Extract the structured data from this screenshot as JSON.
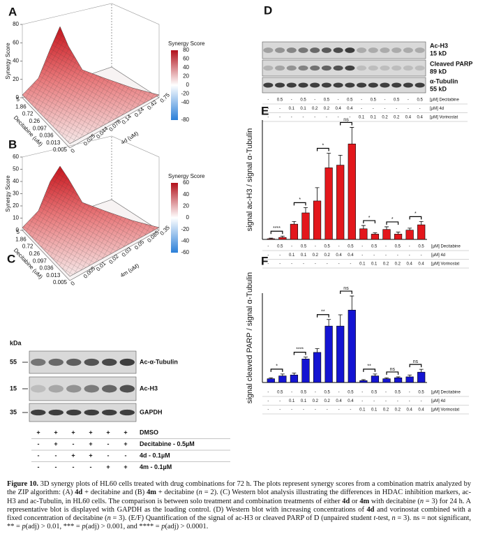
{
  "panel_a": {
    "letter": "A",
    "z_label": "Synergy Score",
    "zlim": [
      0,
      80
    ],
    "zticks": [
      0,
      20,
      40,
      60,
      80
    ],
    "x_label": "Decitabine (uM)",
    "x_ticks": [
      5,
      1.86,
      0.72,
      0.26,
      0.097,
      0.036,
      0.013,
      0.005
    ],
    "y_label": "4d (uM)",
    "y_ticks": [
      0,
      0.025,
      0.044,
      0.078,
      0.14,
      0.24,
      0.42,
      0.75
    ],
    "colorbar": {
      "title": "Synergy Score",
      "clim": [
        -80,
        80
      ],
      "ticks": [
        80,
        60,
        40,
        20,
        0,
        -20,
        -40,
        -80
      ]
    }
  },
  "panel_b": {
    "letter": "B",
    "z_label": "Synergy Score",
    "zlim": [
      0,
      60
    ],
    "zticks": [
      0,
      10,
      20,
      30,
      40,
      50,
      60
    ],
    "x_label": "Decitabine (uM)",
    "x_ticks": [
      5,
      1.86,
      0.72,
      0.26,
      0.097,
      0.036,
      0.013,
      0.005
    ],
    "y_label": "4m (uM)",
    "y_ticks": [
      0,
      0.005,
      0.01,
      0.02,
      0.03,
      0.05,
      0.085,
      0.35
    ],
    "colorbar": {
      "title": "Synergy Score",
      "clim": [
        -60,
        60
      ],
      "ticks": [
        60,
        40,
        20,
        0,
        -20,
        -40,
        -60
      ]
    }
  },
  "panel_c": {
    "letter": "C",
    "unit": "kDa",
    "blots": [
      {
        "marker": 55,
        "label": "Ac-α-Tubulin"
      },
      {
        "marker": 15,
        "label": "Ac-H3"
      },
      {
        "marker": 35,
        "label": "GAPDH"
      }
    ],
    "rows": [
      {
        "label": "DMSO",
        "cells": [
          "+",
          "+",
          "+",
          "+",
          "+",
          "+"
        ]
      },
      {
        "label": "Decitabine - 0.5µM",
        "cells": [
          "-",
          "+",
          "-",
          "+",
          "-",
          "+"
        ]
      },
      {
        "label": "4d - 0.1µM",
        "cells": [
          "-",
          "-",
          "+",
          "+",
          "-",
          "-"
        ]
      },
      {
        "label": "4m - 0.1µM",
        "cells": [
          "-",
          "-",
          "-",
          "-",
          "+",
          "+"
        ]
      }
    ]
  },
  "panel_d": {
    "letter": "D",
    "blots": [
      {
        "label": "Ac-H3",
        "size": "15 kD"
      },
      {
        "label": "Cleaved PARP",
        "size": "89 kD"
      },
      {
        "label": "α-Tubulin",
        "size": "55 kD"
      }
    ],
    "rows": [
      {
        "label": "[µM] Decitabine",
        "cells": [
          "-",
          "0.5",
          "-",
          "0.5",
          "-",
          "0.5",
          "-",
          "0.5",
          "-",
          "0.5",
          "-",
          "0.5",
          "-",
          "0.5"
        ]
      },
      {
        "label": "[µM] 4d",
        "cells": [
          "-",
          "-",
          "0.1",
          "0.1",
          "0.2",
          "0.2",
          "0.4",
          "0.4",
          "-",
          "-",
          "-",
          "-",
          "-",
          "-"
        ]
      },
      {
        "label": "[µM] Vorinostat",
        "cells": [
          "-",
          "-",
          "-",
          "-",
          "-",
          "-",
          "-",
          "-",
          "0.1",
          "0.1",
          "0.2",
          "0.2",
          "0.4",
          "0.4"
        ]
      }
    ]
  },
  "chart_data": [
    {
      "type": "bar",
      "letter": "E",
      "ylabel": "signal ac-H3 / signal α-Tubulin",
      "color": "#e3171c",
      "ylim": [
        0,
        1.8
      ],
      "values": [
        0.01,
        0.03,
        0.23,
        0.4,
        0.58,
        1.08,
        1.12,
        1.44,
        0.16,
        0.08,
        0.15,
        0.08,
        0.14,
        0.22
      ],
      "errors": [
        0.01,
        0.02,
        0.04,
        0.08,
        0.2,
        0.22,
        0.15,
        0.25,
        0.05,
        0.02,
        0.04,
        0.03,
        0.03,
        0.05
      ],
      "significance": [
        "****",
        "*",
        "*",
        "ns",
        "*",
        "*",
        "*"
      ],
      "rows": [
        {
          "label": "[µM] Decitabine",
          "cells": [
            "-",
            "0.5",
            "-",
            "0.5",
            "-",
            "0.5",
            "-",
            "0.5",
            "-",
            "0.5",
            "-",
            "0.5",
            "-",
            "0.5"
          ]
        },
        {
          "label": "[µM] 4d",
          "cells": [
            "-",
            "-",
            "0.1",
            "0.1",
            "0.2",
            "0.2",
            "0.4",
            "0.4",
            "-",
            "-",
            "-",
            "-",
            "-",
            "-"
          ]
        },
        {
          "label": "[µM] Vorinostat",
          "cells": [
            "-",
            "-",
            "-",
            "-",
            "-",
            "-",
            "-",
            "-",
            "0.1",
            "0.1",
            "0.2",
            "0.2",
            "0.4",
            "0.4"
          ]
        }
      ]
    },
    {
      "type": "bar",
      "letter": "F",
      "ylabel": "signal cleaved PARP / signal α-Tubulin",
      "color": "#1414d2",
      "ylim": [
        0,
        0.95
      ],
      "values": [
        0.04,
        0.07,
        0.08,
        0.25,
        0.32,
        0.6,
        0.6,
        0.77,
        0.02,
        0.07,
        0.04,
        0.05,
        0.06,
        0.11
      ],
      "errors": [
        0.01,
        0.02,
        0.02,
        0.02,
        0.04,
        0.07,
        0.12,
        0.15,
        0.01,
        0.02,
        0.01,
        0.01,
        0.02,
        0.03
      ],
      "significance": [
        "*",
        "****",
        "**",
        "ns",
        "**",
        "ns",
        "ns"
      ],
      "rows": [
        {
          "label": "[µM] Decitabine",
          "cells": [
            "-",
            "0.5",
            "-",
            "0.5",
            "-",
            "0.5",
            "-",
            "0.5",
            "-",
            "0.5",
            "-",
            "0.5",
            "-",
            "0.5"
          ]
        },
        {
          "label": "[µM] 4d",
          "cells": [
            "-",
            "-",
            "0.1",
            "0.1",
            "0.2",
            "0.2",
            "0.4",
            "0.4",
            "-",
            "-",
            "-",
            "-",
            "-",
            "-"
          ]
        },
        {
          "label": "[µM] Vorinostat",
          "cells": [
            "-",
            "-",
            "-",
            "-",
            "-",
            "-",
            "-",
            "-",
            "0.1",
            "0.1",
            "0.2",
            "0.2",
            "0.4",
            "0.4"
          ]
        }
      ]
    }
  ],
  "caption": [
    {
      "text": "Figure 10.",
      "bold": true
    },
    {
      "text": " 3D synergy plots of HL60 cells treated with drug combinations for 72 h. The plots represent synergy scores from a combination matrix analyzed by the ZIP algorithm: (A) "
    },
    {
      "text": "4d",
      "bold": true
    },
    {
      "text": " + decitabine and (B) "
    },
    {
      "text": "4m",
      "bold": true
    },
    {
      "text": " + decitabine ("
    },
    {
      "text": "n",
      "italic": true
    },
    {
      "text": " = 2). (C) Western blot analysis illustrating the differences in HDAC inhibition markers, ac-H3 and ac-Tubulin, in HL60 cells. The comparison is between solo treatment and combination treatments of either "
    },
    {
      "text": "4d",
      "bold": true
    },
    {
      "text": " or "
    },
    {
      "text": "4m",
      "bold": true
    },
    {
      "text": " with decitabine ("
    },
    {
      "text": "n",
      "italic": true
    },
    {
      "text": " = 3) for 24 h. A representative blot is displayed with GAPDH as the loading control. (D) Western blot with increasing concentrations of "
    },
    {
      "text": "4d",
      "bold": true
    },
    {
      "text": " and vorinostat combined with a fixed concentration of decitabine ("
    },
    {
      "text": "n",
      "italic": true
    },
    {
      "text": " = 3). (E/F) Quantification of the signal of ac-H3 or cleaved PARP of D (unpaired student "
    },
    {
      "text": "t",
      "italic": true
    },
    {
      "text": "-test, "
    },
    {
      "text": "n",
      "italic": true
    },
    {
      "text": " = 3). ns = not significant, ** = "
    },
    {
      "text": "p",
      "italic": true
    },
    {
      "text": "(adj) > 0.01, *** = "
    },
    {
      "text": "p",
      "italic": true
    },
    {
      "text": "(adj) > 0.001, and **** = "
    },
    {
      "text": "p",
      "italic": true
    },
    {
      "text": "(adj) > 0.0001."
    }
  ]
}
